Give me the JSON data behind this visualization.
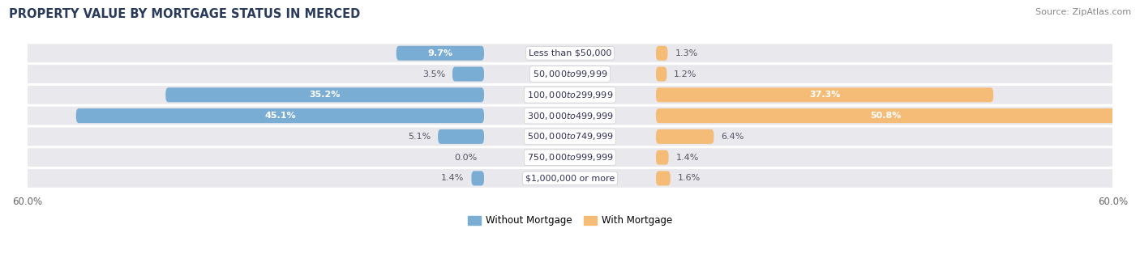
{
  "title": "PROPERTY VALUE BY MORTGAGE STATUS IN MERCED",
  "source": "Source: ZipAtlas.com",
  "categories": [
    "Less than $50,000",
    "$50,000 to $99,999",
    "$100,000 to $299,999",
    "$300,000 to $499,999",
    "$500,000 to $749,999",
    "$750,000 to $999,999",
    "$1,000,000 or more"
  ],
  "without_mortgage": [
    9.7,
    3.5,
    35.2,
    45.1,
    5.1,
    0.0,
    1.4
  ],
  "with_mortgage": [
    1.3,
    1.2,
    37.3,
    50.8,
    6.4,
    1.4,
    1.6
  ],
  "axis_max": 60.0,
  "bar_color_without": "#7aadd4",
  "bar_color_with": "#f5bc78",
  "bg_color_bar": "#e8e8ed",
  "title_color": "#2a3a5a",
  "source_color": "#888888",
  "legend_labels": [
    "Without Mortgage",
    "With Mortgage"
  ],
  "label_color": "#555566"
}
